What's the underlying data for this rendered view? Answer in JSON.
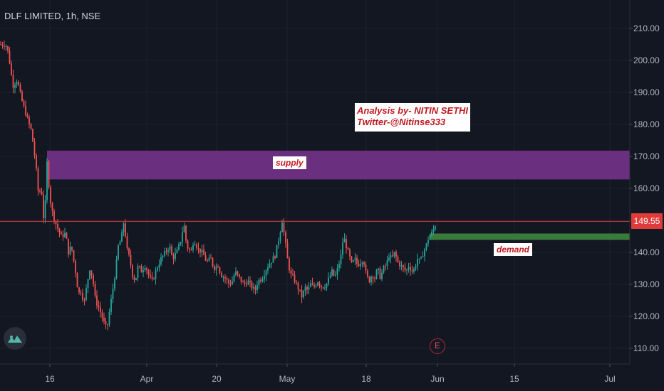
{
  "chart_title": "DLF LIMITED, 1h, NSE",
  "chart_data": {
    "type": "candlestick",
    "symbol": "DLF LIMITED",
    "interval": "1h",
    "exchange": "NSE",
    "ylim": [
      105,
      213
    ],
    "y_ticks": [
      "210.00",
      "200.00",
      "190.00",
      "180.00",
      "170.00",
      "160.00",
      "150.00",
      "140.00",
      "130.00",
      "120.00",
      "110.00"
    ],
    "y_tick_values": [
      210,
      200,
      190,
      180,
      170,
      160,
      150,
      140,
      130,
      120,
      110
    ],
    "x_ticks": [
      "16",
      "Apr",
      "20",
      "May",
      "18",
      "Jun",
      "15",
      "Jul"
    ],
    "last_price": "149.55",
    "last_price_value": 149.55,
    "up_color": "#26a69a",
    "down_color": "#ef5350",
    "path": [
      [
        0,
        205
      ],
      [
        8,
        205
      ],
      [
        12,
        202
      ],
      [
        18,
        192
      ],
      [
        24,
        194
      ],
      [
        30,
        188
      ],
      [
        38,
        182
      ],
      [
        44,
        178
      ],
      [
        50,
        168
      ],
      [
        54,
        158
      ],
      [
        58,
        160
      ],
      [
        62,
        148
      ],
      [
        66,
        168
      ],
      [
        70,
        157
      ],
      [
        74,
        152
      ],
      [
        80,
        148
      ],
      [
        86,
        145
      ],
      [
        92,
        146
      ],
      [
        96,
        140
      ],
      [
        100,
        142
      ],
      [
        106,
        134
      ],
      [
        110,
        127
      ],
      [
        114,
        128
      ],
      [
        118,
        124
      ],
      [
        122,
        130
      ],
      [
        126,
        135
      ],
      [
        130,
        132
      ],
      [
        134,
        125
      ],
      [
        140,
        122
      ],
      [
        146,
        118
      ],
      [
        150,
        116
      ],
      [
        154,
        122
      ],
      [
        158,
        128
      ],
      [
        162,
        134
      ],
      [
        166,
        142
      ],
      [
        170,
        144
      ],
      [
        174,
        150
      ],
      [
        178,
        141
      ],
      [
        182,
        138
      ],
      [
        186,
        133
      ],
      [
        190,
        131
      ],
      [
        194,
        136
      ],
      [
        198,
        134
      ],
      [
        204,
        136
      ],
      [
        210,
        132
      ],
      [
        214,
        131
      ],
      [
        220,
        135
      ],
      [
        226,
        138
      ],
      [
        232,
        140
      ],
      [
        238,
        142
      ],
      [
        242,
        138
      ],
      [
        248,
        140
      ],
      [
        254,
        144
      ],
      [
        258,
        149
      ],
      [
        262,
        142
      ],
      [
        268,
        140
      ],
      [
        272,
        144
      ],
      [
        278,
        141
      ],
      [
        284,
        140
      ],
      [
        290,
        137
      ],
      [
        296,
        138
      ],
      [
        300,
        135
      ],
      [
        306,
        136
      ],
      [
        310,
        133
      ],
      [
        316,
        132
      ],
      [
        322,
        130
      ],
      [
        326,
        131
      ],
      [
        330,
        134
      ],
      [
        336,
        132
      ],
      [
        342,
        130
      ],
      [
        348,
        131
      ],
      [
        354,
        129
      ],
      [
        358,
        128
      ],
      [
        362,
        131
      ],
      [
        368,
        132
      ],
      [
        374,
        135
      ],
      [
        380,
        137
      ],
      [
        386,
        139
      ],
      [
        392,
        145
      ],
      [
        396,
        150
      ],
      [
        400,
        144
      ],
      [
        404,
        137
      ],
      [
        408,
        133
      ],
      [
        412,
        132
      ],
      [
        416,
        130
      ],
      [
        420,
        128
      ],
      [
        424,
        126
      ],
      [
        428,
        129
      ],
      [
        432,
        128
      ],
      [
        436,
        130
      ],
      [
        440,
        129
      ],
      [
        446,
        131
      ],
      [
        452,
        129
      ],
      [
        458,
        130
      ],
      [
        462,
        132
      ],
      [
        466,
        134
      ],
      [
        470,
        132
      ],
      [
        474,
        135
      ],
      [
        478,
        138
      ],
      [
        482,
        145
      ],
      [
        486,
        142
      ],
      [
        490,
        139
      ],
      [
        494,
        136
      ],
      [
        498,
        138
      ],
      [
        502,
        136
      ],
      [
        506,
        137
      ],
      [
        510,
        138
      ],
      [
        514,
        133
      ],
      [
        518,
        131
      ],
      [
        522,
        133
      ],
      [
        526,
        132
      ],
      [
        530,
        135
      ],
      [
        534,
        132
      ],
      [
        538,
        135
      ],
      [
        542,
        136
      ],
      [
        546,
        139
      ],
      [
        550,
        138
      ],
      [
        554,
        140
      ],
      [
        558,
        137
      ],
      [
        562,
        136
      ],
      [
        566,
        135
      ],
      [
        570,
        134
      ],
      [
        574,
        136
      ],
      [
        578,
        134
      ],
      [
        582,
        135
      ],
      [
        586,
        138
      ],
      [
        590,
        137
      ],
      [
        594,
        140
      ],
      [
        598,
        142
      ],
      [
        602,
        145
      ],
      [
        606,
        146
      ],
      [
        610,
        148
      ],
      [
        613,
        149.55
      ]
    ],
    "zones": [
      {
        "label": "supply",
        "low": 162.8,
        "high": 171.8,
        "color": "#6b2f7f"
      },
      {
        "label": "demand",
        "low": 143.9,
        "high": 145.9,
        "color": "#3a7a3a"
      }
    ],
    "resistance_line": 149.7
  },
  "annotation": {
    "line1": "Analysis by- NITIN SETHI",
    "line2": "Twitter-@Nitinse333"
  },
  "zone_labels": {
    "supply": "supply",
    "demand": "demand"
  },
  "event_badge": "E"
}
